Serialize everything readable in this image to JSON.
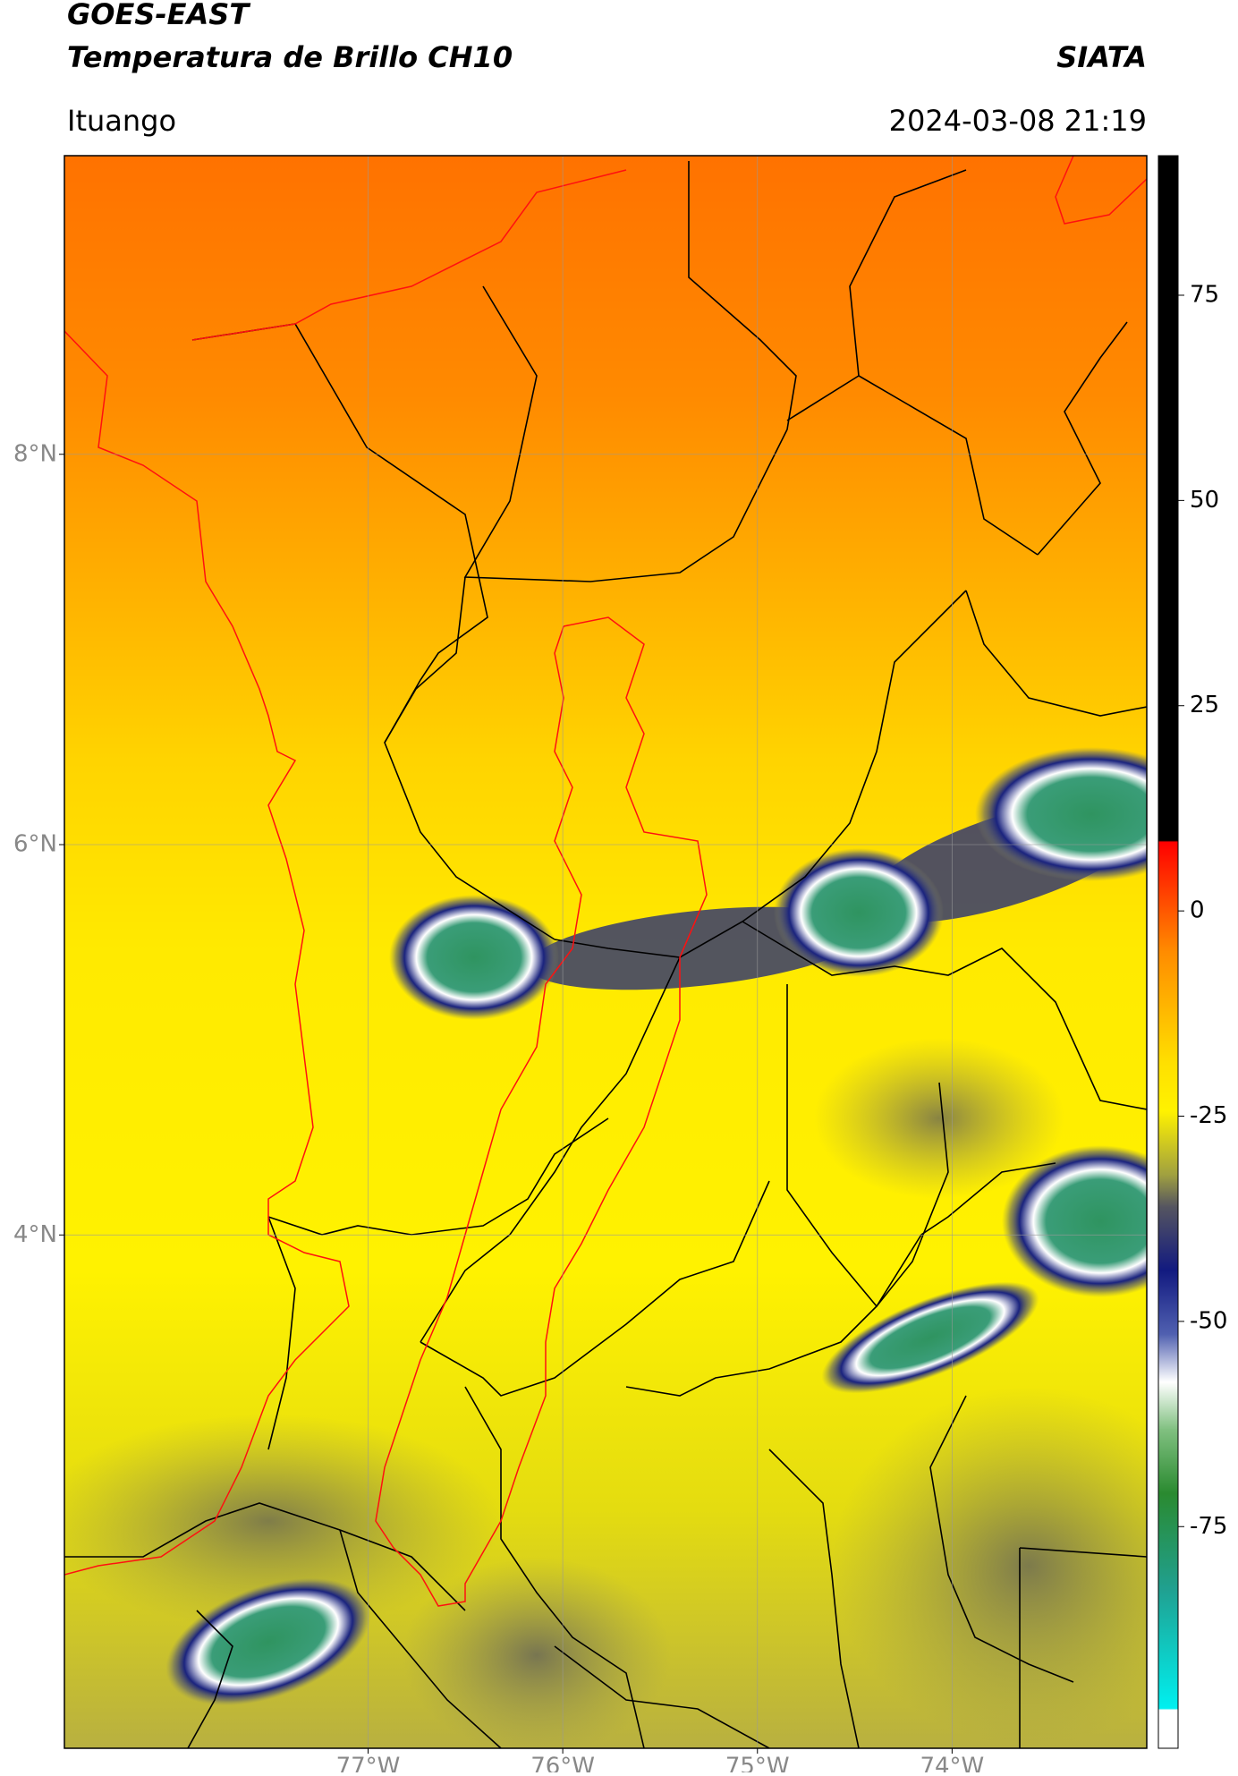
{
  "header": {
    "title": "GOES-EAST",
    "subtitle": "Temperatura de Brillo CH10",
    "source": "SIATA",
    "location": "Ituango",
    "datetime": "2024-03-08 21:19"
  },
  "map": {
    "lonlim": [
      -78.56,
      -73.0
    ],
    "latlim": [
      1.37,
      9.53
    ],
    "lat_ticks": [
      {
        "value": 8,
        "label": "8°N"
      },
      {
        "value": 6,
        "label": "6°N"
      },
      {
        "value": 4,
        "label": "4°N"
      }
    ],
    "lon_ticks": [
      {
        "value": -77,
        "label": "77°W"
      },
      {
        "value": -76,
        "label": "76°W"
      },
      {
        "value": -75,
        "label": "75°W"
      },
      {
        "value": -74,
        "label": "74°W"
      }
    ]
  },
  "colorbar": {
    "lim": [
      -102,
      92
    ],
    "ticks": [
      75,
      50,
      25,
      0,
      -25,
      -50,
      -75
    ]
  }
}
